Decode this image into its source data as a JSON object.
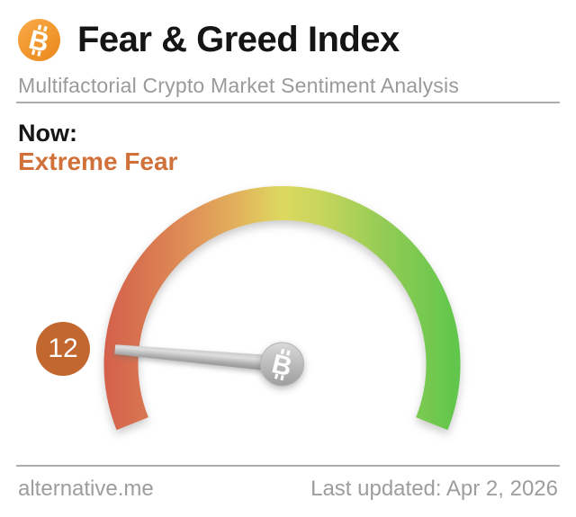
{
  "header": {
    "logo_icon": "bitcoin-icon",
    "title": "Fear & Greed Index",
    "subtitle": "Multifactorial Crypto Market Sentiment Analysis"
  },
  "now": {
    "label": "Now:",
    "sentiment": "Extreme Fear"
  },
  "chart_data": {
    "type": "gauge",
    "title": "Fear & Greed Index",
    "value": 12,
    "min": 0,
    "max": 100,
    "classification": "Extreme Fear",
    "arc_span_degrees": 223,
    "legend_position": "none",
    "gradient_stops": [
      {
        "offset": "0%",
        "color": "#d4604b"
      },
      {
        "offset": "10%",
        "color": "#d7724f"
      },
      {
        "offset": "25%",
        "color": "#e09258"
      },
      {
        "offset": "38%",
        "color": "#e2b35c"
      },
      {
        "offset": "50%",
        "color": "#ddd95f"
      },
      {
        "offset": "62%",
        "color": "#c4d55c"
      },
      {
        "offset": "78%",
        "color": "#94cc55"
      },
      {
        "offset": "100%",
        "color": "#5ec64b"
      }
    ],
    "needle_hub_icon": "bitcoin-icon"
  },
  "footer": {
    "site": "alternative.me",
    "last_updated": "Last updated: Apr 2, 2026"
  },
  "colors": {
    "title_text": "#151515",
    "subtitle_text": "#9a9a9a",
    "sentiment_orange": "#d1713a",
    "badge_orange": "#c2682f",
    "logo_orange_light": "#f9a845",
    "logo_orange_dark": "#ea8a1c",
    "divider_gray": "#adadad",
    "footer_text": "#9d9d9d",
    "needle_gray": "#b5b5b5",
    "hub_gray": "#b0b0b0"
  }
}
